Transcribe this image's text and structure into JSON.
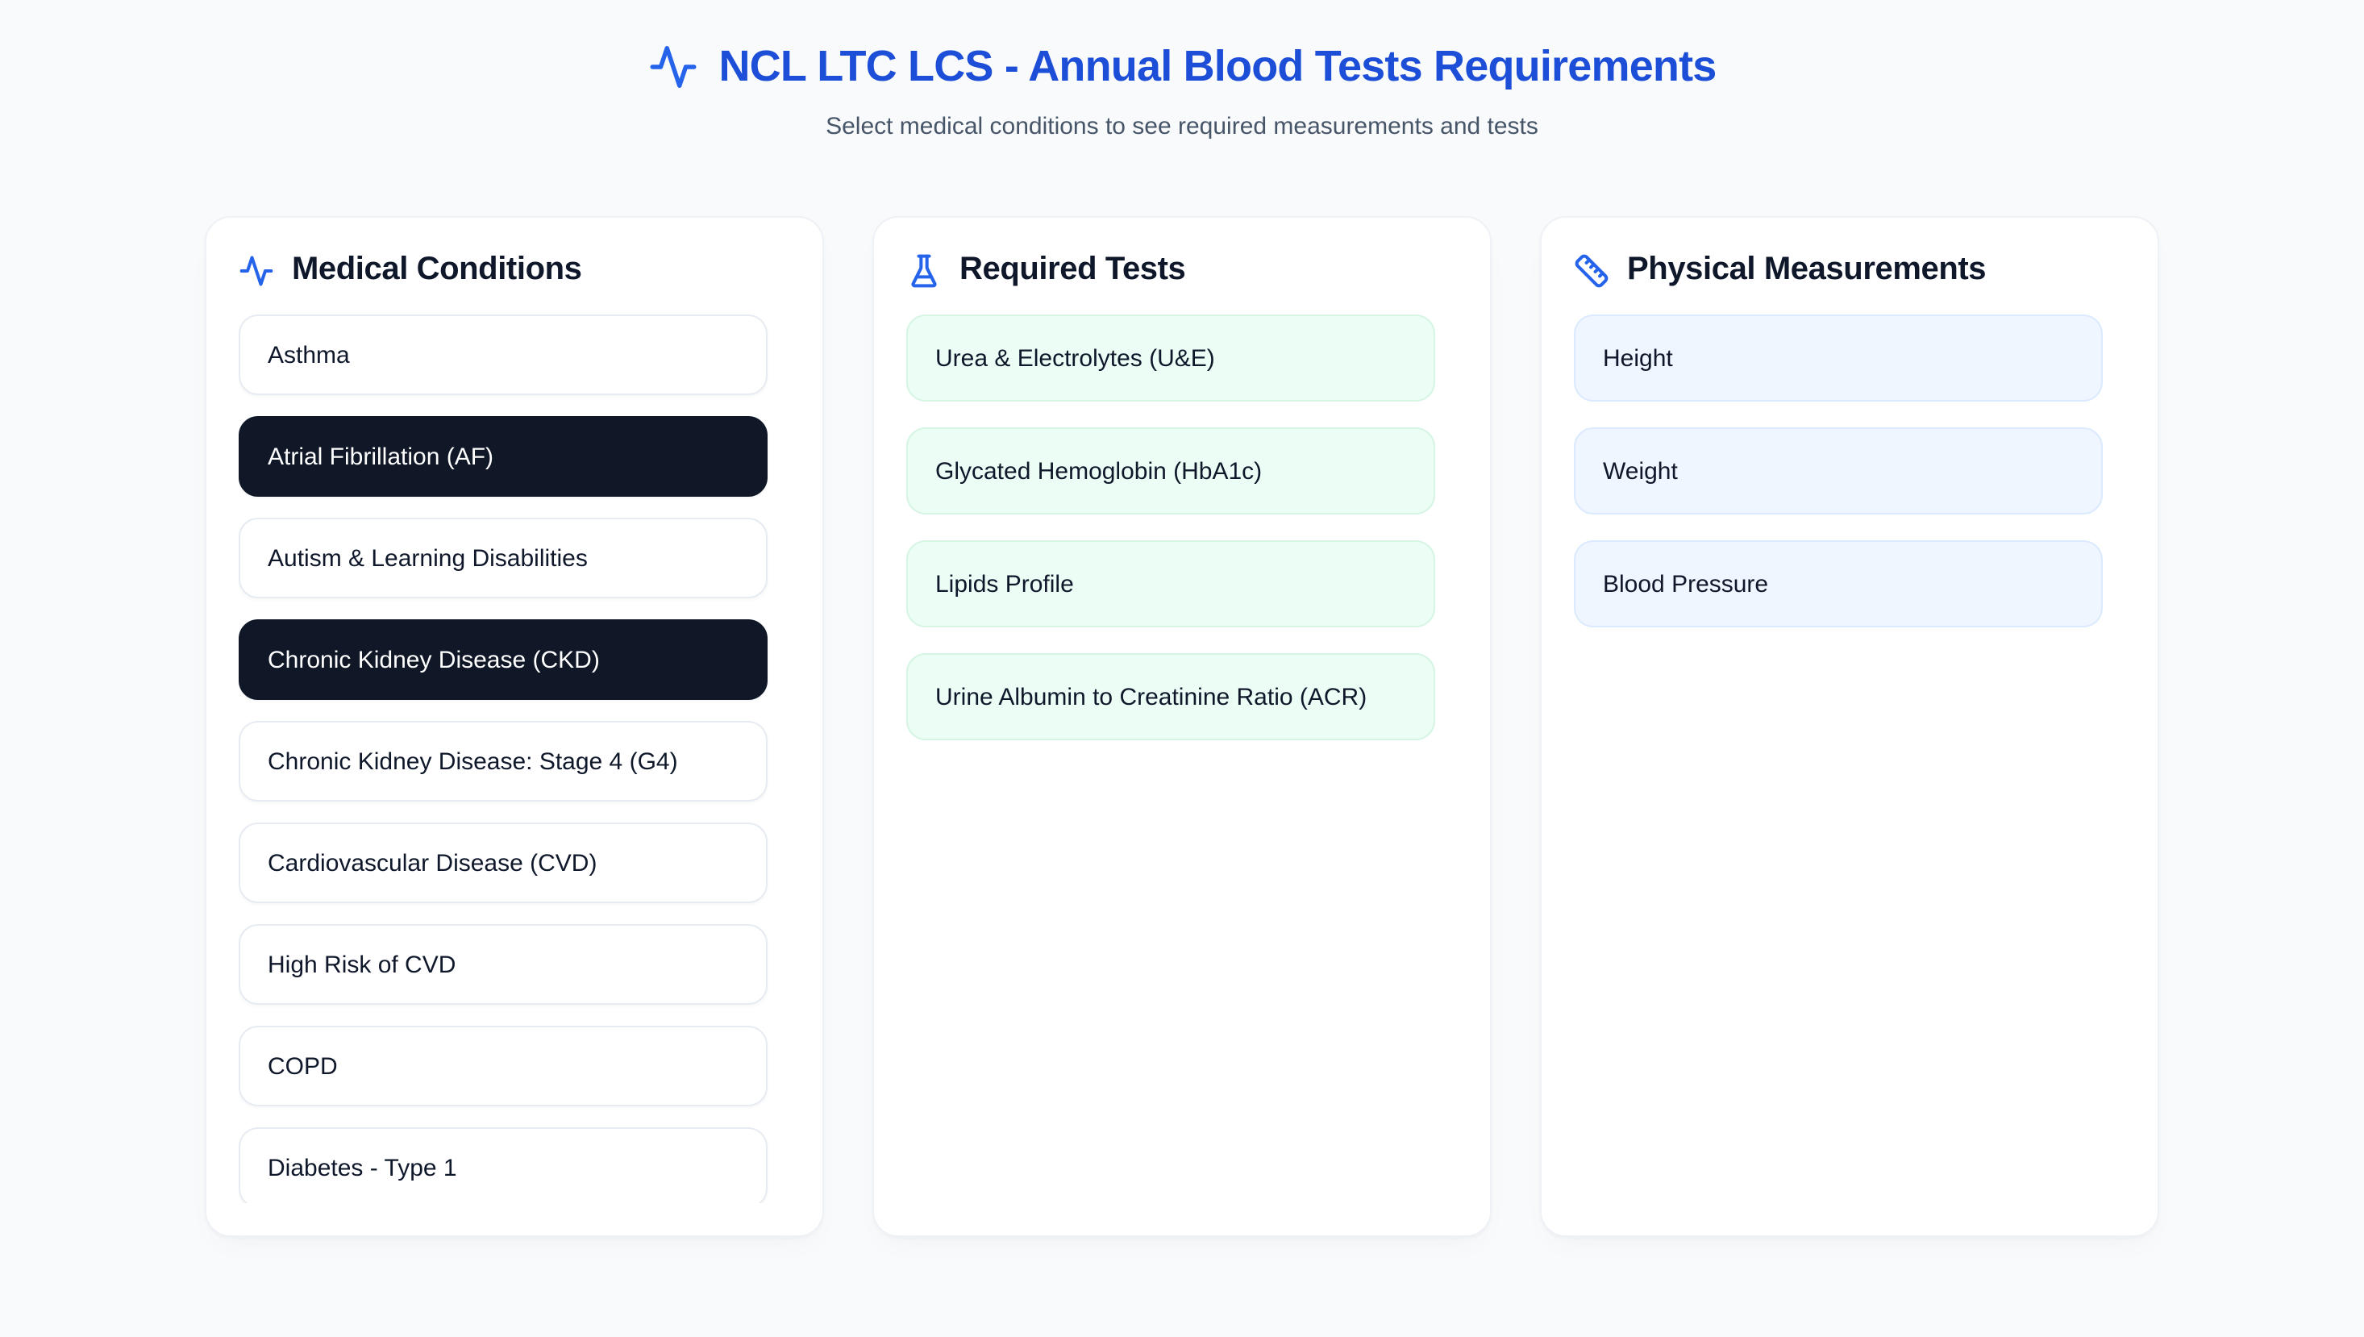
{
  "header": {
    "title": "NCL LTC LCS - Annual Blood Tests Requirements",
    "subtitle": "Select medical conditions to see required measurements and tests",
    "title_icon": "activity-icon"
  },
  "colors": {
    "page_bg": "#f8fafc",
    "panel_bg": "#ffffff",
    "panel_border": "#eef1f6",
    "title_blue": "#1d4ed8",
    "icon_blue": "#2563eb",
    "subtitle_gray": "#475569",
    "heading_dark": "#0f172a",
    "condition_border": "#e7ecf2",
    "selected_bg": "#101828",
    "test_bg": "#ecfdf5",
    "test_border": "#d6f5e3",
    "measurement_bg": "#eff6ff",
    "measurement_border": "#dbeafe"
  },
  "panels": {
    "conditions": {
      "title": "Medical Conditions",
      "icon": "activity-icon",
      "items": [
        {
          "label": "Asthma",
          "selected": false
        },
        {
          "label": "Atrial Fibrillation (AF)",
          "selected": true
        },
        {
          "label": "Autism & Learning Disabilities",
          "selected": false
        },
        {
          "label": "Chronic Kidney Disease (CKD)",
          "selected": true
        },
        {
          "label": "Chronic Kidney Disease: Stage 4 (G4)",
          "selected": false
        },
        {
          "label": "Cardiovascular Disease (CVD)",
          "selected": false
        },
        {
          "label": "High Risk of CVD",
          "selected": false
        },
        {
          "label": "COPD",
          "selected": false
        },
        {
          "label": "Diabetes - Type 1",
          "selected": false
        }
      ]
    },
    "tests": {
      "title": "Required Tests",
      "icon": "flask-icon",
      "items": [
        {
          "label": "Urea & Electrolytes (U&E)"
        },
        {
          "label": "Glycated Hemoglobin (HbA1c)"
        },
        {
          "label": "Lipids Profile"
        },
        {
          "label": "Urine Albumin to Creatinine Ratio (ACR)"
        }
      ]
    },
    "measurements": {
      "title": "Physical Measurements",
      "icon": "ruler-icon",
      "items": [
        {
          "label": "Height"
        },
        {
          "label": "Weight"
        },
        {
          "label": "Blood Pressure"
        }
      ]
    }
  }
}
